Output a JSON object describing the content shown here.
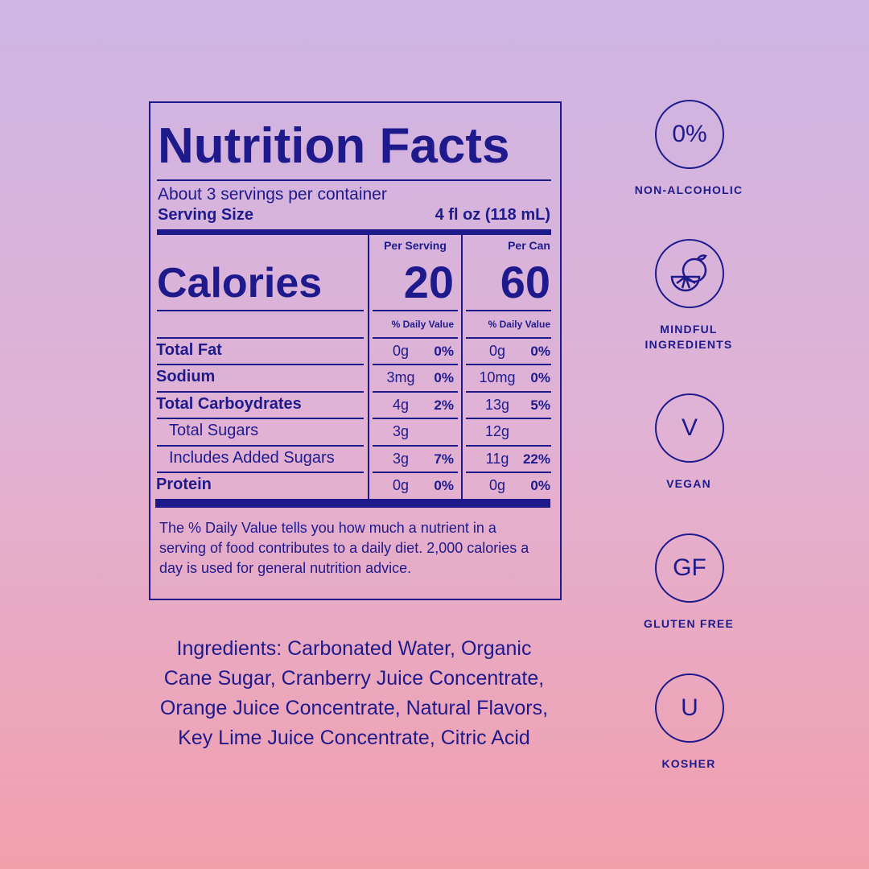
{
  "nutrition": {
    "title": "Nutrition Facts",
    "servings": "About 3 servings per container",
    "serving_size_label": "Serving Size",
    "serving_size": "4 fl oz (118 mL)",
    "columns": [
      "Per Serving",
      "Per Can"
    ],
    "calories_label": "Calories",
    "calories": [
      20,
      60
    ],
    "daily_value_label": "% Daily Value",
    "rows": [
      {
        "name": "Total Fat",
        "serving": [
          "0g",
          "0%"
        ],
        "can": [
          "0g",
          "0%"
        ],
        "indent": false
      },
      {
        "name": "Sodium",
        "serving": [
          "3mg",
          "0%"
        ],
        "can": [
          "10mg",
          "0%"
        ],
        "indent": false
      },
      {
        "name": "Total Carboydrates",
        "serving": [
          "4g",
          "2%"
        ],
        "can": [
          "13g",
          "5%"
        ],
        "indent": false
      },
      {
        "name": "Total Sugars",
        "serving": [
          "3g",
          null
        ],
        "can": [
          "12g",
          null
        ],
        "indent": true
      },
      {
        "name": "Includes Added Sugars",
        "serving": [
          "3g",
          "7%"
        ],
        "can": [
          "11g",
          "22%"
        ],
        "indent": true
      },
      {
        "name": "Protein",
        "serving": [
          "0g",
          "0%"
        ],
        "can": [
          "0g",
          "0%"
        ],
        "indent": false
      }
    ],
    "footnote": "The % Daily Value tells you how much a nutrient in a serving of food contributes to a daily diet. 2,000 calories a day is used for general nutrition advice."
  },
  "ingredients": [
    "Ingredients: Carbonated Water, Organic",
    "Cane Sugar, Cranberry Juice Concentrate,",
    "Orange Juice Concentrate, Natural Flavors,",
    "Key Lime Juice Concentrate, Citric Acid"
  ],
  "badges": [
    {
      "symbol": "0%",
      "label": "NON-ALCOHOLIC"
    },
    {
      "label": "MINDFUL INGREDIENTS"
    },
    {
      "symbol": "V",
      "label": "VEGAN"
    },
    {
      "symbol": "GF",
      "label": "GLUTEN FREE"
    },
    {
      "symbol": "U",
      "label": "KOSHER"
    }
  ]
}
